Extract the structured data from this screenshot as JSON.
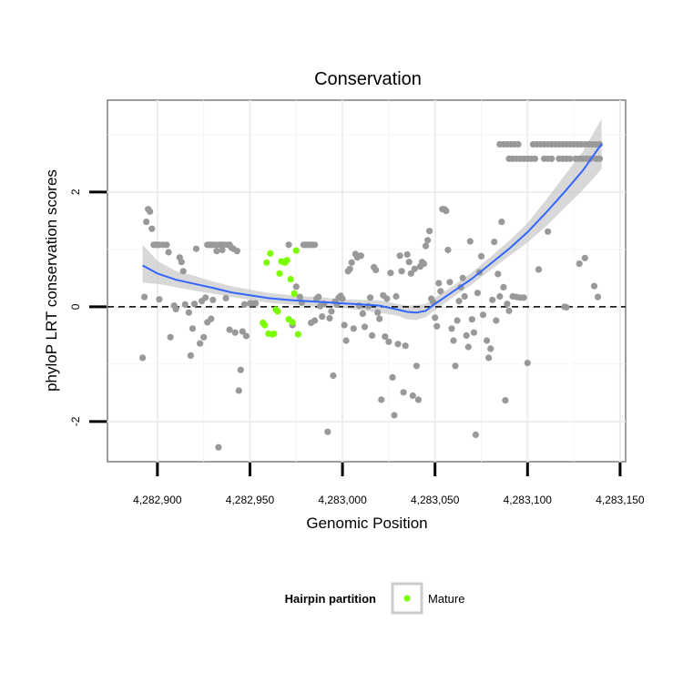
{
  "chart_data": {
    "type": "scatter",
    "title": "Conservation",
    "xlabel": "Genomic Position",
    "ylabel": "phyloP LRT conservation scores",
    "xlim": [
      4282873,
      4283153
    ],
    "ylim": [
      -2.7,
      3.6
    ],
    "x_ticks": [
      4282900,
      4282950,
      4283000,
      4283050,
      4283100,
      4283150
    ],
    "x_tick_labels": [
      "4,282,900",
      "4,282,950",
      "4,283,000",
      "4,283,050",
      "4,283,100",
      "4,283,150"
    ],
    "y_ticks": [
      -2,
      0,
      2
    ],
    "y_tick_labels": [
      "-2",
      "0",
      "2"
    ],
    "reference_line": {
      "y": 0,
      "style": "dashed"
    },
    "grid": true,
    "legend": {
      "title": "Hairpin partition",
      "position": "bottom",
      "entries": [
        {
          "label": "Mature",
          "color": "#7cfc00"
        }
      ]
    },
    "colors": {
      "points": "#999999",
      "mature": "#7cfc00",
      "smooth": "#3366ff",
      "band": "#c8c8c8"
    },
    "series": [
      {
        "name": "",
        "color": "#999999",
        "points": [
          [
            4282892,
            -0.89
          ],
          [
            4282893,
            0.17
          ],
          [
            4282894,
            1.48
          ],
          [
            4282895,
            1.7
          ],
          [
            4282896,
            1.66
          ],
          [
            4282897,
            1.36
          ],
          [
            4282898,
            1.08
          ],
          [
            4282899,
            1.08
          ],
          [
            4282900,
            1.08
          ],
          [
            4282901,
            1.08
          ],
          [
            4282903,
            1.08
          ],
          [
            4282905,
            1.08
          ],
          [
            4282901,
            0.13
          ],
          [
            4282906,
            0.95
          ],
          [
            4282907,
            -0.53
          ],
          [
            4282909,
            0.02
          ],
          [
            4282910,
            -0.04
          ],
          [
            4282912,
            0.86
          ],
          [
            4282913,
            0.78
          ],
          [
            4282914,
            0.62
          ],
          [
            4282915,
            0.04
          ],
          [
            4282917,
            -0.1
          ],
          [
            4282918,
            -0.85
          ],
          [
            4282919,
            -0.38
          ],
          [
            4282920,
            0.05
          ],
          [
            4282921,
            1.01
          ],
          [
            4282923,
            -0.64
          ],
          [
            4282924,
            0.1
          ],
          [
            4282925,
            -0.53
          ],
          [
            4282926,
            0.16
          ],
          [
            4282927,
            1.08
          ],
          [
            4282928,
            1.08
          ],
          [
            4282929,
            1.08
          ],
          [
            4282930,
            1.08
          ],
          [
            4282931,
            1.08
          ],
          [
            4282933,
            1.08
          ],
          [
            4282934,
            1.08
          ],
          [
            4282935,
            1.08
          ],
          [
            4282936,
            1.08
          ],
          [
            4282938,
            1.08
          ],
          [
            4282939,
            1.08
          ],
          [
            4282927,
            -0.27
          ],
          [
            4282929,
            -0.21
          ],
          [
            4282930,
            0.12
          ],
          [
            4282932,
            0.97
          ],
          [
            4282933,
            -2.45
          ],
          [
            4282935,
            0.99
          ],
          [
            4282937,
            0.15
          ],
          [
            4282939,
            -0.4
          ],
          [
            4282940,
            1.03
          ],
          [
            4282941,
            1.01
          ],
          [
            4282942,
            -0.45
          ],
          [
            4282943,
            0.97
          ],
          [
            4282944,
            -1.46
          ],
          [
            4282945,
            -1.1
          ],
          [
            4282946,
            -0.43
          ],
          [
            4282947,
            0.04
          ],
          [
            4282948,
            -0.51
          ],
          [
            4282950,
            0.06
          ],
          [
            4282951,
            0.06
          ],
          [
            4282953,
            0.06
          ],
          [
            4282971,
            1.08
          ],
          [
            4282973,
            -0.32
          ],
          [
            4282975,
            0.35
          ],
          [
            4282977,
            0.17
          ],
          [
            4282978,
            0.07
          ],
          [
            4282979,
            1.08
          ],
          [
            4282980,
            1.08
          ],
          [
            4282981,
            1.08
          ],
          [
            4282982,
            1.08
          ],
          [
            4282983,
            1.08
          ],
          [
            4282984,
            1.08
          ],
          [
            4282985,
            1.08
          ],
          [
            4282983,
            -0.28
          ],
          [
            4282985,
            -0.24
          ],
          [
            4282986,
            0.14
          ],
          [
            4282987,
            0.17
          ],
          [
            4282988,
            0.01
          ],
          [
            4282989,
            -0.17
          ],
          [
            4282990,
            0.05
          ],
          [
            4282992,
            -2.18
          ],
          [
            4282993,
            -0.2
          ],
          [
            4282994,
            -0.08
          ],
          [
            4282995,
            -1.2
          ],
          [
            4282996,
            0.09
          ],
          [
            4282997,
            0.04
          ],
          [
            4282998,
            0.16
          ],
          [
            4282999,
            0.19
          ],
          [
            4283000,
            0.14
          ],
          [
            4283001,
            -0.32
          ],
          [
            4283002,
            -0.59
          ],
          [
            4283003,
            0.62
          ],
          [
            4283004,
            0.66
          ],
          [
            4283005,
            0.77
          ],
          [
            4283006,
            -0.38
          ],
          [
            4283007,
            0.92
          ],
          [
            4283008,
            0.86
          ],
          [
            4283009,
            0.02
          ],
          [
            4283010,
            0.89
          ],
          [
            4283011,
            -0.12
          ],
          [
            4283012,
            -0.35
          ],
          [
            4283014,
            0.01
          ],
          [
            4283015,
            0.16
          ],
          [
            4283016,
            -0.5
          ],
          [
            4283017,
            0.69
          ],
          [
            4283018,
            0.64
          ],
          [
            4283019,
            -0.1
          ],
          [
            4283020,
            -0.21
          ],
          [
            4283021,
            -1.62
          ],
          [
            4283022,
            0.2
          ],
          [
            4283023,
            -0.52
          ],
          [
            4283024,
            0.14
          ],
          [
            4283025,
            -0.61
          ],
          [
            4283026,
            0.59
          ],
          [
            4283027,
            -1.23
          ],
          [
            4283028,
            -1.89
          ],
          [
            4283029,
            0.18
          ],
          [
            4283030,
            -0.65
          ],
          [
            4283031,
            0.89
          ],
          [
            4283032,
            0.62
          ],
          [
            4283033,
            -1.49
          ],
          [
            4283034,
            -0.68
          ],
          [
            4283035,
            0.91
          ],
          [
            4283036,
            0.78
          ],
          [
            4283037,
            0.58
          ],
          [
            4283038,
            -1.55
          ],
          [
            4283039,
            0.66
          ],
          [
            4283040,
            -1.03
          ],
          [
            4283041,
            -1.62
          ],
          [
            4283042,
            0.7
          ],
          [
            4283043,
            0.78
          ],
          [
            4283044,
            0.75
          ],
          [
            4283045,
            1.06
          ],
          [
            4283046,
            1.16
          ],
          [
            4283047,
            1.32
          ],
          [
            4283048,
            0.14
          ],
          [
            4283049,
            0.08
          ],
          [
            4283050,
            -0.19
          ],
          [
            4283051,
            -0.34
          ],
          [
            4283052,
            0.41
          ],
          [
            4283053,
            0.27
          ],
          [
            4283054,
            1.7
          ],
          [
            4283055,
            1.7
          ],
          [
            4283056,
            1.67
          ],
          [
            4283057,
            0.99
          ],
          [
            4283058,
            0.43
          ],
          [
            4283059,
            -0.38
          ],
          [
            4283060,
            -0.59
          ],
          [
            4283061,
            -1.03
          ],
          [
            4283062,
            -0.24
          ],
          [
            4283063,
            0.1
          ],
          [
            4283064,
            0.34
          ],
          [
            4283065,
            0.5
          ],
          [
            4283066,
            0.18
          ],
          [
            4283067,
            -0.5
          ],
          [
            4283068,
            -0.7
          ],
          [
            4283069,
            1.14
          ],
          [
            4283070,
            -0.22
          ],
          [
            4283071,
            -0.45
          ],
          [
            4283072,
            -2.23
          ],
          [
            4283073,
            0.24
          ],
          [
            4283074,
            0.6
          ],
          [
            4283075,
            0.88
          ],
          [
            4283076,
            -0.14
          ],
          [
            4283078,
            -0.59
          ],
          [
            4283079,
            -0.89
          ],
          [
            4283080,
            -0.73
          ],
          [
            4283081,
            0.12
          ],
          [
            4283082,
            1.13
          ],
          [
            4283083,
            -0.24
          ],
          [
            4283084,
            0.57
          ],
          [
            4283085,
            0.18
          ],
          [
            4283086,
            1.48
          ],
          [
            4283087,
            0.34
          ],
          [
            4283088,
            -1.63
          ],
          [
            4283089,
            0.05
          ],
          [
            4283090,
            -0.07
          ],
          [
            4283092,
            0.18
          ],
          [
            4283094,
            0.17
          ],
          [
            4283096,
            0.16
          ],
          [
            4283098,
            0.16
          ],
          [
            4283100,
            -0.98
          ],
          [
            4283106,
            0.65
          ],
          [
            4283111,
            1.31
          ],
          [
            4283120,
            0.0
          ],
          [
            4283121,
            -0.01
          ],
          [
            4283128,
            0.75
          ],
          [
            4283131,
            0.85
          ],
          [
            4283136,
            0.36
          ],
          [
            4283138,
            0.17
          ],
          [
            4283085,
            2.83
          ],
          [
            4283087,
            2.83
          ],
          [
            4283089,
            2.83
          ],
          [
            4283091,
            2.83
          ],
          [
            4283093,
            2.83
          ],
          [
            4283095,
            2.83
          ],
          [
            4283103,
            2.83
          ],
          [
            4283105,
            2.83
          ],
          [
            4283107,
            2.83
          ],
          [
            4283109,
            2.83
          ],
          [
            4283111,
            2.83
          ],
          [
            4283113,
            2.83
          ],
          [
            4283115,
            2.83
          ],
          [
            4283117,
            2.83
          ],
          [
            4283119,
            2.83
          ],
          [
            4283121,
            2.83
          ],
          [
            4283123,
            2.83
          ],
          [
            4283125,
            2.83
          ],
          [
            4283127,
            2.83
          ],
          [
            4283129,
            2.83
          ],
          [
            4283131,
            2.83
          ],
          [
            4283133,
            2.83
          ],
          [
            4283135,
            2.83
          ],
          [
            4283137,
            2.83
          ],
          [
            4283139,
            2.83
          ],
          [
            4283090,
            2.58
          ],
          [
            4283092,
            2.58
          ],
          [
            4283094,
            2.58
          ],
          [
            4283096,
            2.58
          ],
          [
            4283098,
            2.58
          ],
          [
            4283100,
            2.58
          ],
          [
            4283102,
            2.58
          ],
          [
            4283104,
            2.58
          ],
          [
            4283109,
            2.58
          ],
          [
            4283111,
            2.58
          ],
          [
            4283113,
            2.58
          ],
          [
            4283117,
            2.58
          ],
          [
            4283119,
            2.58
          ],
          [
            4283121,
            2.58
          ],
          [
            4283123,
            2.58
          ],
          [
            4283126,
            2.58
          ],
          [
            4283128,
            2.58
          ],
          [
            4283130,
            2.58
          ],
          [
            4283132,
            2.58
          ],
          [
            4283134,
            2.58
          ],
          [
            4283137,
            2.58
          ],
          [
            4283139,
            2.58
          ]
        ]
      },
      {
        "name": "Mature",
        "color": "#7cfc00",
        "points": [
          [
            4282957,
            -0.28
          ],
          [
            4282958,
            -0.32
          ],
          [
            4282959,
            0.77
          ],
          [
            4282960,
            -0.47
          ],
          [
            4282961,
            0.93
          ],
          [
            4282962,
            -0.48
          ],
          [
            4282963,
            -0.47
          ],
          [
            4282964,
            -0.05
          ],
          [
            4282965,
            -0.08
          ],
          [
            4282966,
            0.58
          ],
          [
            4282967,
            0.79
          ],
          [
            4282968,
            0.78
          ],
          [
            4282969,
            0.77
          ],
          [
            4282970,
            0.81
          ],
          [
            4282971,
            -0.22
          ],
          [
            4282972,
            0.48
          ],
          [
            4282973,
            -0.27
          ],
          [
            4282974,
            0.23
          ],
          [
            4282975,
            0.98
          ],
          [
            4282976,
            -0.48
          ]
        ]
      }
    ],
    "smooth": {
      "x": [
        4282892,
        4282900,
        4282910,
        4282920,
        4282930,
        4282940,
        4282950,
        4282960,
        4282970,
        4282980,
        4282990,
        4283000,
        4283010,
        4283020,
        4283030,
        4283035,
        4283040,
        4283045,
        4283050,
        4283060,
        4283070,
        4283080,
        4283090,
        4283100,
        4283110,
        4283120,
        4283130,
        4283140
      ],
      "y": [
        0.72,
        0.58,
        0.47,
        0.4,
        0.33,
        0.25,
        0.2,
        0.15,
        0.12,
        0.1,
        0.08,
        0.06,
        0.04,
        0.02,
        -0.05,
        -0.09,
        -0.1,
        -0.07,
        0.05,
        0.27,
        0.49,
        0.75,
        1.01,
        1.3,
        1.64,
        2.0,
        2.38,
        2.84
      ],
      "lo": [
        0.42,
        0.4,
        0.34,
        0.28,
        0.23,
        0.17,
        0.12,
        0.07,
        0.04,
        0.02,
        0.0,
        -0.02,
        -0.06,
        -0.1,
        -0.16,
        -0.22,
        -0.23,
        -0.18,
        -0.06,
        0.17,
        0.39,
        0.64,
        0.88,
        1.12,
        1.4,
        1.72,
        2.04,
        2.4
      ],
      "hi": [
        1.08,
        0.8,
        0.62,
        0.54,
        0.44,
        0.36,
        0.3,
        0.24,
        0.21,
        0.18,
        0.16,
        0.13,
        0.12,
        0.11,
        0.05,
        0.02,
        0.03,
        0.05,
        0.16,
        0.37,
        0.6,
        0.87,
        1.15,
        1.46,
        1.86,
        2.29,
        2.71,
        3.28
      ]
    }
  }
}
